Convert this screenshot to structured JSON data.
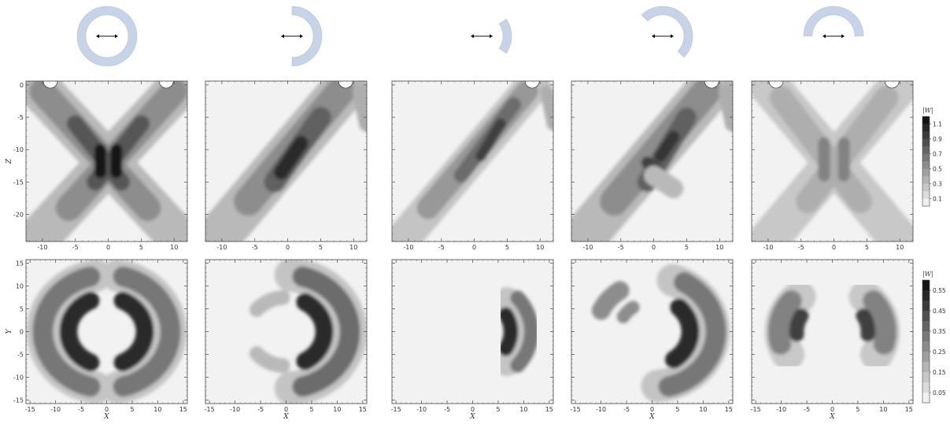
{
  "figure": {
    "columns": [
      {
        "aperture": "full-ring",
        "arc_start_deg": 0,
        "arc_end_deg": 360
      },
      {
        "aperture": "right-half-ring",
        "arc_start_deg": -90,
        "arc_end_deg": 90
      },
      {
        "aperture": "small-right-arc",
        "arc_start_deg": -35,
        "arc_end_deg": 35
      },
      {
        "aperture": "three-quarter-arc",
        "arc_start_deg": -45,
        "arc_end_deg": 135
      },
      {
        "aperture": "upper-half-ring",
        "arc_start_deg": 0,
        "arc_end_deg": 180
      }
    ],
    "aperture_color": "#c7d3e6",
    "arrow_icon": "double-headed-arrow"
  },
  "top_row": {
    "xlabel": "X",
    "ylabel": "Z",
    "x_ticks": [
      "-10",
      "-5",
      "0",
      "5",
      "10"
    ],
    "x_tick_values": [
      -10,
      -5,
      0,
      5,
      10
    ],
    "y_ticks": [
      "0",
      "-5",
      "-10",
      "-15",
      "-20"
    ],
    "y_tick_values": [
      0,
      -5,
      -10,
      -15,
      -20
    ],
    "colorbar": {
      "label": "|W|",
      "ticks": [
        "1.1",
        "0.9",
        "0.7",
        "0.5",
        "0.3",
        "0.1"
      ],
      "tick_values": [
        1.1,
        0.9,
        0.7,
        0.5,
        0.3,
        0.1
      ],
      "range": [
        0,
        1.2
      ]
    }
  },
  "bottom_row": {
    "xlabel": "X",
    "ylabel": "Y",
    "x_ticks": [
      "-15",
      "-10",
      "-5",
      "0",
      "5",
      "10",
      "15"
    ],
    "x_tick_values": [
      -15,
      -10,
      -5,
      0,
      5,
      10,
      15
    ],
    "y_ticks": [
      "15",
      "10",
      "5",
      "0",
      "-5",
      "-10",
      "-15"
    ],
    "y_tick_values": [
      15,
      10,
      5,
      0,
      -5,
      -10,
      -15
    ],
    "colorbar": {
      "label": "|W|",
      "ticks": [
        "0.55",
        "0.45",
        "0.35",
        "0.25",
        "0.15",
        "0.05"
      ],
      "tick_values": [
        0.55,
        0.45,
        0.35,
        0.25,
        0.15,
        0.05
      ],
      "range": [
        0,
        0.6
      ]
    }
  },
  "chart_data": [
    {
      "type": "heatmap",
      "row": "top",
      "column": 1,
      "xlabel": "",
      "ylabel": "Z",
      "xlim": [
        -12,
        12
      ],
      "ylim": [
        -24,
        0.5
      ],
      "description_features": [
        "X-shaped pattern",
        "peak at X=±1, Z=-12"
      ]
    },
    {
      "type": "heatmap",
      "row": "top",
      "column": 2,
      "xlabel": "",
      "ylabel": "",
      "xlim": [
        -12,
        12
      ],
      "ylim": [
        -24,
        0.5
      ]
    },
    {
      "type": "heatmap",
      "row": "top",
      "column": 3,
      "xlabel": "",
      "ylabel": "",
      "xlim": [
        -12,
        12
      ],
      "ylim": [
        -24,
        0.5
      ]
    },
    {
      "type": "heatmap",
      "row": "top",
      "column": 4,
      "xlabel": "",
      "ylabel": "",
      "xlim": [
        -12,
        12
      ],
      "ylim": [
        -24,
        0.5
      ]
    },
    {
      "type": "heatmap",
      "row": "top",
      "column": 5,
      "xlabel": "",
      "ylabel": "",
      "xlim": [
        -12,
        12
      ],
      "ylim": [
        -24,
        0.5
      ]
    },
    {
      "type": "heatmap",
      "row": "bottom",
      "column": 1,
      "xlabel": "X",
      "ylabel": "Y",
      "xlim": [
        -15.5,
        15.5
      ],
      "ylim": [
        -15.5,
        15.5
      ]
    },
    {
      "type": "heatmap",
      "row": "bottom",
      "column": 2,
      "xlabel": "X",
      "ylabel": "",
      "xlim": [
        -15.5,
        15.5
      ],
      "ylim": [
        -15.5,
        15.5
      ]
    },
    {
      "type": "heatmap",
      "row": "bottom",
      "column": 3,
      "xlabel": "X",
      "ylabel": "",
      "xlim": [
        -15.5,
        15.5
      ],
      "ylim": [
        -15.5,
        15.5
      ]
    },
    {
      "type": "heatmap",
      "row": "bottom",
      "column": 4,
      "xlabel": "X",
      "ylabel": "",
      "xlim": [
        -15.5,
        15.5
      ],
      "ylim": [
        -15.5,
        15.5
      ]
    },
    {
      "type": "heatmap",
      "row": "bottom",
      "column": 5,
      "xlabel": "X",
      "ylabel": "",
      "xlim": [
        -15.5,
        15.5
      ],
      "ylim": [
        -15.5,
        15.5
      ]
    }
  ]
}
